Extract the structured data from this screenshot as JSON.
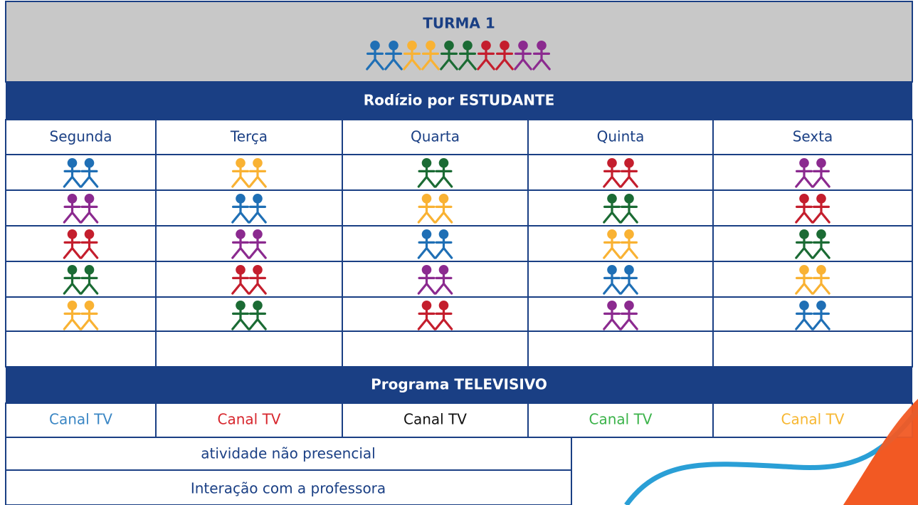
{
  "header": {
    "title": "TURMA 1"
  },
  "rotation": {
    "title": "Rodízio por ESTUDANTE",
    "days": [
      "Segunda",
      "Terça",
      "Quarta",
      "Quinta",
      "Sexta"
    ]
  },
  "program": {
    "title": "Programa TELEVISIVO",
    "channels": [
      "Canal TV",
      "Canal TV",
      "Canal TV",
      "Canal TV",
      "Canal TV"
    ]
  },
  "footer": {
    "rows": [
      "atividade não presencial",
      "Interação com a professora"
    ]
  }
}
